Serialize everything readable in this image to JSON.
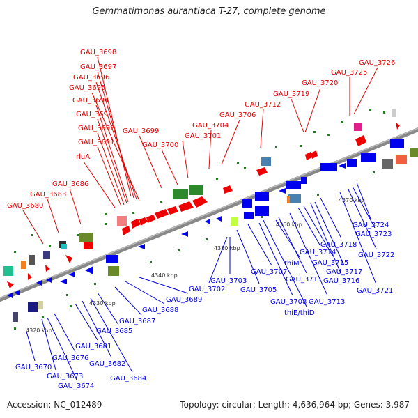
{
  "title": "Gemmatimonas aurantiaca T-27, complete genome",
  "footer": {
    "accession": "Accession: NC_012489",
    "summary": "Topology: circular; Length: 4,636,964 bp; Genes: 3,987"
  },
  "colors": {
    "backbone": "#808080",
    "top_labels": "#e00000",
    "bottom_labels": "#0000e0"
  },
  "ticks": [
    "4320 kbp",
    "4330 kbp",
    "4340 kbp",
    "4350 kbp",
    "4360 kbp",
    "4370 kbp"
  ],
  "top_labels": [
    "GAU_3698",
    "GAU_3697",
    "GAU_3696",
    "GAU_3695",
    "GAU_3694",
    "GAU_3693",
    "GAU_3692",
    "GAU_3691",
    "rluA",
    "GAU_3699",
    "GAU_3700",
    "GAU_3701",
    "GAU_3704",
    "GAU_3706",
    "GAU_3712",
    "GAU_3719",
    "GAU_3720",
    "GAU_3725",
    "GAU_3726",
    "GAU_3686",
    "GAU_3683",
    "GAU_3680"
  ],
  "bottom_labels": [
    "GAU_3670",
    "GAU_3673",
    "GAU_3674",
    "GAU_3676",
    "GAU_3681",
    "GAU_3682",
    "GAU_3684",
    "GAU_3685",
    "GAU_3687",
    "GAU_3688",
    "GAU_3689",
    "GAU_3702",
    "GAU_3703",
    "GAU_3705",
    "GAU_3707",
    "GAU_3708",
    "thiE/thiD",
    "thiM",
    "GAU_3711",
    "GAU_3713",
    "GAU_3714",
    "GAU_3715",
    "GAU_3716",
    "GAU_3717",
    "GAU_3718",
    "GAU_3721",
    "GAU_3722",
    "GAU_3723",
    "GAU_3724"
  ]
}
